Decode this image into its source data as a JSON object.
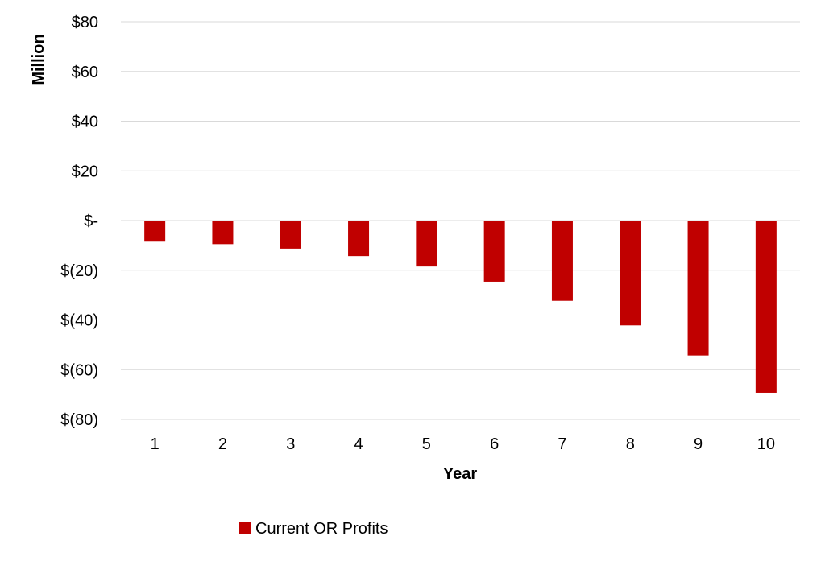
{
  "chart_data": {
    "type": "bar",
    "categories": [
      "1",
      "2",
      "3",
      "4",
      "5",
      "6",
      "7",
      "8",
      "9",
      "10"
    ],
    "series": [
      {
        "name": "Current OR Profits",
        "color": "#c00000",
        "values": [
          -8.5,
          -9.5,
          -11.3,
          -14.3,
          -18.5,
          -24.6,
          -32.3,
          -42.2,
          -54.3,
          -69.3
        ]
      }
    ],
    "xlabel": "Year",
    "ylabel": "Million",
    "ylim": [
      -80,
      80
    ],
    "yticks": [
      80,
      60,
      40,
      20,
      0,
      -20,
      -40,
      -60,
      -80
    ],
    "ytick_labels": [
      "$80",
      "$60",
      "$40",
      "$20",
      "$-",
      "$(20)",
      "$(40)",
      "$(60)",
      "$(80)"
    ],
    "grid": true,
    "legend_position": "bottom"
  }
}
